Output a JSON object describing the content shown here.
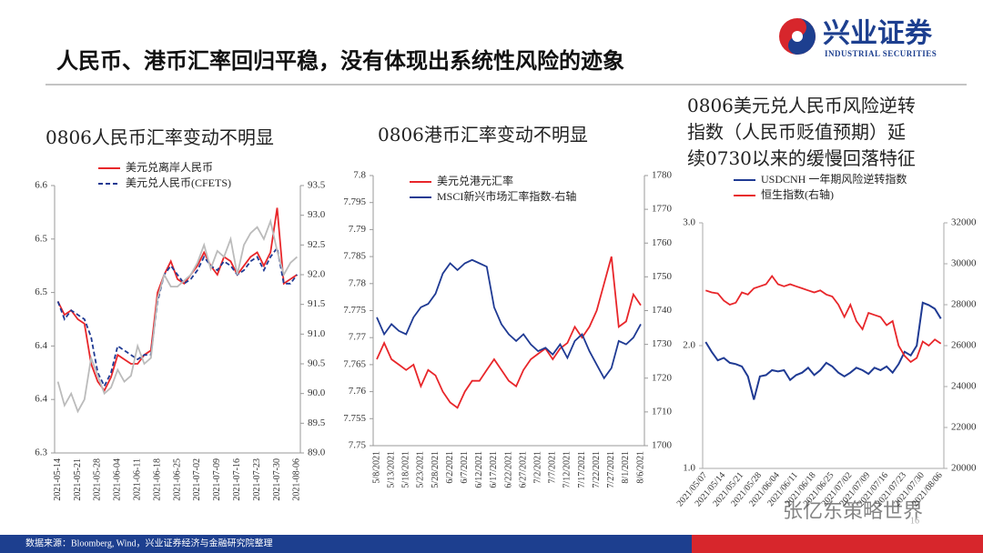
{
  "page": {
    "title": "人民币、港币汇率回归平稳，没有体现出系统性风险的迹象",
    "logo": "兴业证券",
    "logo_sub": "INDUSTRIAL SECURITIES",
    "source": "数据来源：Bloomberg, Wind，兴业证券经济与金融研究院整理",
    "watermark": "张亿东策略世界",
    "page_number": "16"
  },
  "chart_data": [
    {
      "type": "line",
      "title": [
        "0806人民币汇率变动不明显"
      ],
      "categories": [
        "2021-05-14",
        null,
        null,
        "2021-05-21",
        null,
        null,
        "2021-05-28",
        null,
        null,
        "2021-06-04",
        null,
        null,
        "2021-06-11",
        null,
        null,
        "2021-06-18",
        null,
        null,
        "2021-06-25",
        null,
        null,
        "2021-07-02",
        null,
        null,
        "2021-07-09",
        null,
        null,
        "2021-07-16",
        null,
        null,
        "2021-07-23",
        null,
        null,
        "2021-07-30",
        null,
        null,
        "2021-08-06"
      ],
      "series": [
        {
          "name": "美元兑离岸人民币",
          "color": "#e8262a",
          "values": [
            6.47,
            6.455,
            6.46,
            6.45,
            6.445,
            6.4,
            6.38,
            6.37,
            6.385,
            6.41,
            6.405,
            6.4,
            6.4,
            6.41,
            6.415,
            6.48,
            6.5,
            6.515,
            6.495,
            6.49,
            6.5,
            6.51,
            6.525,
            6.51,
            6.5,
            6.52,
            6.515,
            6.5,
            6.51,
            6.52,
            6.525,
            6.51,
            6.525,
            6.575,
            6.49,
            6.495,
            6.5
          ]
        },
        {
          "name": "美元兑人民币(CFETS)",
          "color": "#1f3a93",
          "dash": true,
          "values": [
            6.47,
            6.45,
            6.46,
            6.455,
            6.45,
            6.43,
            6.39,
            6.375,
            6.39,
            6.42,
            6.415,
            6.41,
            6.405,
            6.41,
            6.41,
            6.47,
            6.5,
            6.51,
            6.5,
            6.49,
            6.495,
            6.505,
            6.52,
            6.51,
            6.505,
            6.515,
            6.51,
            6.5,
            6.505,
            6.515,
            6.52,
            6.505,
            6.52,
            6.53,
            6.49,
            6.49,
            6.5
          ]
        },
        {
          "color": "#bbbbbb",
          "axis": "y2",
          "values": [
            90.2,
            89.8,
            90.0,
            89.7,
            89.9,
            90.6,
            90.3,
            90.0,
            90.1,
            90.4,
            90.2,
            90.3,
            90.8,
            90.5,
            90.6,
            91.6,
            92.0,
            91.8,
            91.8,
            91.9,
            92.0,
            92.2,
            92.5,
            92.1,
            92.4,
            92.3,
            92.6,
            92.0,
            92.5,
            92.7,
            92.8,
            92.6,
            92.9,
            92.4,
            92.0,
            92.2,
            92.3
          ]
        }
      ],
      "ylim": [
        6.3,
        6.6
      ],
      "yticks": [
        6.3,
        {
          "value": 6.36,
          "label": "6.4"
        },
        {
          "value": 6.42,
          "label": "6.4"
        },
        {
          "value": 6.48,
          "label": "6.5"
        },
        {
          "value": 6.54,
          "label": "6.5"
        },
        6.6
      ],
      "y2lim": [
        89,
        93.5
      ],
      "y2ticks": [
        {
          "value": 89,
          "label": "89.0"
        },
        89.5,
        {
          "value": 90,
          "label": "90.0"
        },
        90.5,
        {
          "value": 91,
          "label": "91.0"
        },
        91.5,
        {
          "value": 92,
          "label": "92.0"
        },
        92.5,
        {
          "value": 93,
          "label": "93.0"
        },
        93.5
      ]
    },
    {
      "type": "line",
      "title": [
        "0806港币汇率变动不明显"
      ],
      "categories": [
        "5/8/2021",
        null,
        "5/13/2021",
        null,
        "5/18/2021",
        null,
        "5/23/2021",
        null,
        "5/28/2021",
        null,
        "6/2/2021",
        null,
        "6/7/2021",
        null,
        "6/12/2021",
        null,
        "6/17/2021",
        null,
        "6/22/2021",
        null,
        "6/27/2021",
        null,
        "7/2/2021",
        null,
        "7/7/2021",
        null,
        "7/12/2021",
        null,
        "7/17/2021",
        null,
        "7/22/2021",
        null,
        "7/27/2021",
        null,
        "8/1/2021",
        null,
        "8/6/2021"
      ],
      "series": [
        {
          "name": "美元兑港元汇率",
          "color": "#e8262a",
          "values": [
            7.766,
            7.769,
            7.766,
            7.765,
            7.764,
            7.765,
            7.761,
            7.764,
            7.763,
            7.76,
            7.758,
            7.757,
            7.76,
            7.762,
            7.762,
            7.764,
            7.766,
            7.764,
            7.762,
            7.761,
            7.764,
            7.766,
            7.767,
            7.768,
            7.766,
            7.768,
            7.769,
            7.772,
            7.77,
            7.772,
            7.775,
            7.78,
            7.785,
            7.772,
            7.773,
            7.778,
            7.776
          ]
        },
        {
          "name": "MSCI新兴市场汇率指数-右轴",
          "color": "#1f3a93",
          "axis": "y2",
          "values": [
            1738,
            1733,
            1736,
            1734,
            1733,
            1738,
            1741,
            1742,
            1745,
            1751,
            1754,
            1752,
            1754,
            1755,
            1754,
            1753,
            1741,
            1736,
            1733,
            1731,
            1733,
            1730,
            1728,
            1729,
            1727,
            1730,
            1726,
            1731,
            1733,
            1728,
            1724,
            1720,
            1723,
            1731,
            1730,
            1732,
            1736
          ]
        }
      ],
      "ylim": [
        7.75,
        7.8
      ],
      "yticks": [
        7.75,
        7.755,
        7.76,
        7.765,
        7.77,
        7.775,
        7.78,
        7.785,
        7.79,
        7.795,
        7.8
      ],
      "y2lim": [
        1700,
        1780
      ],
      "y2ticks": [
        1700,
        1710,
        1720,
        1730,
        1740,
        1750,
        1760,
        1770,
        1780
      ]
    },
    {
      "type": "line",
      "title": [
        "0806美元兑人民币风险逆转",
        "指数（人民币贬值预期）延",
        "续0730以来的缓慢回落特征"
      ],
      "categories": [
        "2021/05/07",
        null,
        null,
        "2021/05/14",
        null,
        null,
        "2021/05/21",
        null,
        null,
        "2021/05/28",
        null,
        null,
        "2021/06/04",
        null,
        null,
        "2021/06/11",
        null,
        null,
        "2021/06/18",
        null,
        null,
        "2021/06/25",
        null,
        null,
        "2021/07/02",
        null,
        null,
        "2021/07/09",
        null,
        null,
        "2021/07/16",
        null,
        null,
        "2021/07/23",
        null,
        null,
        "2021/07/30",
        null,
        null,
        "2021/08/06"
      ],
      "series": [
        {
          "name": "USDCNH 一年期风险逆转指数",
          "color": "#1f3a93",
          "width": 2,
          "values": [
            2.03,
            1.95,
            1.88,
            1.9,
            1.86,
            1.85,
            1.83,
            1.75,
            1.56,
            1.75,
            1.76,
            1.8,
            1.79,
            1.8,
            1.72,
            1.76,
            1.78,
            1.82,
            1.76,
            1.8,
            1.86,
            1.83,
            1.78,
            1.75,
            1.78,
            1.82,
            1.8,
            1.77,
            1.82,
            1.8,
            1.83,
            1.78,
            1.85,
            1.95,
            1.92,
            2.0,
            2.35,
            2.33,
            2.3,
            2.22
          ]
        },
        {
          "name": "恒生指数(右轴)",
          "color": "#e8262a",
          "axis": "y2",
          "values": [
            28700,
            28600,
            28550,
            28200,
            28000,
            28100,
            28600,
            28500,
            28800,
            28900,
            29000,
            29400,
            29000,
            28900,
            29000,
            28900,
            28800,
            28700,
            28600,
            28700,
            28500,
            28400,
            28000,
            27400,
            28000,
            27200,
            26800,
            27600,
            27500,
            27400,
            27000,
            27200,
            26000,
            25500,
            25200,
            25400,
            26200,
            26000,
            26300,
            26100
          ]
        }
      ],
      "ylim": [
        1,
        3
      ],
      "yticks": [
        {
          "value": 1,
          "label": "1.0"
        },
        {
          "value": 2,
          "label": "2.0"
        },
        {
          "value": 3,
          "label": "3.0"
        }
      ],
      "y2lim": [
        20000,
        32000
      ],
      "y2ticks": [
        20000,
        22000,
        24000,
        26000,
        28000,
        30000,
        32000
      ]
    }
  ]
}
